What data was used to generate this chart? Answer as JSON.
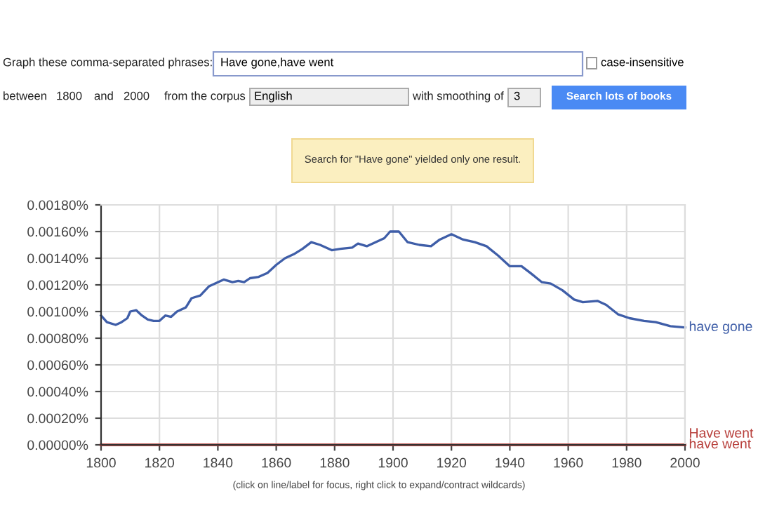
{
  "chart_data": {
    "type": "line",
    "annotations": [
      "Graph these comma-separated phrases:",
      "Have gone,have went",
      "case-insensitive",
      "between",
      "1800",
      "and",
      "2000",
      "from the corpus",
      "English",
      "with smoothing of",
      "3",
      "Search lots of books",
      "Search for \"Have gone\" yielded only one result.",
      "(click on line/label for focus, right click to expand/contract wildcards)"
    ],
    "series": [
      {
        "name": "have gone",
        "color": "#3f5ea8",
        "x": [
          1800,
          1802,
          1805,
          1807,
          1809,
          1810,
          1812,
          1814,
          1816,
          1818,
          1820,
          1822,
          1824,
          1826,
          1829,
          1831,
          1834,
          1837,
          1840,
          1842,
          1845,
          1847,
          1849,
          1851,
          1854,
          1857,
          1860,
          1863,
          1866,
          1869,
          1872,
          1875,
          1879,
          1882,
          1886,
          1888,
          1891,
          1894,
          1897,
          1899,
          1902,
          1905,
          1909,
          1913,
          1916,
          1920,
          1924,
          1928,
          1932,
          1936,
          1940,
          1944,
          1947,
          1951,
          1954,
          1958,
          1962,
          1965,
          1970,
          1973,
          1977,
          1981,
          1986,
          1990,
          1995,
          2000
        ],
        "values": [
          0.00097,
          0.00092,
          0.0009,
          0.00092,
          0.00095,
          0.001,
          0.00101,
          0.00097,
          0.00094,
          0.00093,
          0.00093,
          0.00097,
          0.00096,
          0.001,
          0.00103,
          0.0011,
          0.00112,
          0.00119,
          0.00122,
          0.00124,
          0.00122,
          0.00123,
          0.00122,
          0.00125,
          0.00126,
          0.00129,
          0.00135,
          0.0014,
          0.00143,
          0.00147,
          0.00152,
          0.0015,
          0.00146,
          0.00147,
          0.00148,
          0.00151,
          0.00149,
          0.00152,
          0.00155,
          0.0016,
          0.0016,
          0.00152,
          0.0015,
          0.00149,
          0.00154,
          0.00158,
          0.00154,
          0.00152,
          0.00149,
          0.00142,
          0.00134,
          0.00134,
          0.00129,
          0.00122,
          0.00121,
          0.00116,
          0.00109,
          0.00107,
          0.00108,
          0.00105,
          0.00098,
          0.00095,
          0.00093,
          0.00092,
          0.00089,
          0.00088
        ]
      },
      {
        "name": "have went",
        "color": "#b8403c",
        "x": [
          1800,
          2000
        ],
        "values": [
          0.0,
          0.0
        ]
      },
      {
        "name": "Have went",
        "color": "#b8403c",
        "x": [
          1800,
          2000
        ],
        "values": [
          0.0,
          0.0
        ]
      }
    ],
    "xlim": [
      1800,
      2000
    ],
    "xticks": [
      1800,
      1820,
      1840,
      1860,
      1880,
      1900,
      1920,
      1940,
      1960,
      1980,
      2000
    ],
    "ylim": [
      0,
      0.0018
    ],
    "yticks": [
      {
        "value": 0,
        "label": "0.00000%"
      },
      {
        "value": 0.0002,
        "label": "0.00020%"
      },
      {
        "value": 0.0004,
        "label": "0.00040%"
      },
      {
        "value": 0.0006,
        "label": "0.00060%"
      },
      {
        "value": 0.0008,
        "label": "0.00080%"
      },
      {
        "value": 0.001,
        "label": "0.00100%"
      },
      {
        "value": 0.0012,
        "label": "0.00120%"
      },
      {
        "value": 0.0014,
        "label": "0.00140%"
      },
      {
        "value": 0.0016,
        "label": "0.00160%"
      },
      {
        "value": 0.0018,
        "label": "0.00180%"
      }
    ],
    "grid": true,
    "legend": false,
    "marker": "none",
    "line_style": "solid"
  }
}
